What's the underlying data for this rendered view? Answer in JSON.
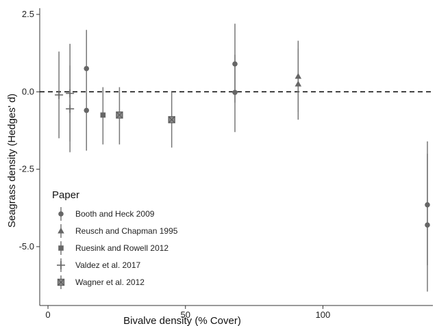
{
  "chart_data": {
    "type": "scatter",
    "title": "",
    "xlabel": "Bivalve density (% Cover)",
    "ylabel": "Seagrass density (Hedges' d)",
    "xlim": [
      -3,
      140
    ],
    "ylim": [
      -6.9,
      2.7
    ],
    "xticks": [
      {
        "value": 0,
        "label": "0"
      },
      {
        "value": 50,
        "label": "50"
      },
      {
        "value": 100,
        "label": "100"
      }
    ],
    "yticks": [
      {
        "value": 2.5,
        "label": "2.5"
      },
      {
        "value": 0,
        "label": "0.0"
      },
      {
        "value": -2.5,
        "label": "-2.5"
      },
      {
        "value": -5,
        "label": "-5.0"
      }
    ],
    "reference_line": {
      "y": 0,
      "style": "dashed"
    },
    "grid": false,
    "legend": {
      "title": "Paper",
      "placement": "bottom-left"
    },
    "marker_color": "#666666",
    "errorbar_color": "#777777",
    "series": [
      {
        "name": "Booth and Heck 2009",
        "marker": "circle",
        "points": [
          {
            "x": 14,
            "y": 0.75,
            "lo": -0.55,
            "hi": 2.0
          },
          {
            "x": 14,
            "y": -0.6,
            "lo": -1.9,
            "hi": 0.8
          },
          {
            "x": 68,
            "y": 0.9,
            "lo": -0.35,
            "hi": 2.2
          },
          {
            "x": 68,
            "y": -0.02,
            "lo": -1.3,
            "hi": 1.2
          },
          {
            "x": 138,
            "y": -3.65,
            "lo": -5.6,
            "hi": -1.6
          },
          {
            "x": 138,
            "y": -4.3,
            "lo": -6.45,
            "hi": -2.0
          }
        ]
      },
      {
        "name": "Reusch and Chapman 1995",
        "marker": "triangle",
        "points": [
          {
            "x": 91,
            "y": 0.5,
            "lo": -0.65,
            "hi": 1.65
          },
          {
            "x": 91,
            "y": 0.25,
            "lo": -0.9,
            "hi": 1.4
          }
        ]
      },
      {
        "name": "Ruesink and Rowell 2012",
        "marker": "square",
        "points": [
          {
            "x": 20,
            "y": -0.75,
            "lo": -1.7,
            "hi": 0.15
          }
        ]
      },
      {
        "name": "Valdez et al. 2017",
        "marker": "plus",
        "points": [
          {
            "x": 4,
            "y": -0.1,
            "lo": -1.5,
            "hi": 1.3
          },
          {
            "x": 8,
            "y": -0.05,
            "lo": -1.6,
            "hi": 1.55
          },
          {
            "x": 8,
            "y": -0.55,
            "lo": -1.95,
            "hi": 0.85
          }
        ]
      },
      {
        "name": "Wagner et al. 2012",
        "marker": "square-cross",
        "points": [
          {
            "x": 26,
            "y": -0.75,
            "lo": -1.7,
            "hi": 0.15
          },
          {
            "x": 45,
            "y": -0.9,
            "lo": -1.8,
            "hi": 0.0
          }
        ]
      }
    ]
  }
}
